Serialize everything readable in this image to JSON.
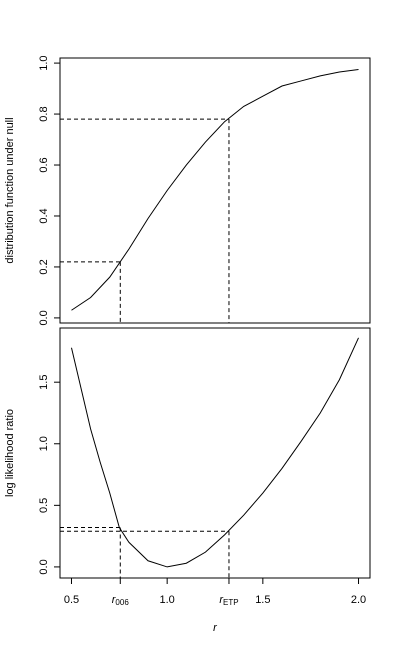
{
  "chart_data": [
    {
      "type": "line",
      "y_label": "distribution function under null",
      "xlim": [
        0.44,
        2.06
      ],
      "ylim": [
        -0.02,
        1.02
      ],
      "yticks": [
        {
          "value": 0,
          "label": "0.0"
        },
        0.2,
        0.4,
        0.6,
        0.8,
        {
          "value": 1,
          "label": "1.0"
        }
      ],
      "color": "#000000",
      "x": [
        0.5,
        0.6,
        0.7,
        0.8,
        0.9,
        1.0,
        1.1,
        1.2,
        1.3,
        1.4,
        1.5,
        1.6,
        1.7,
        1.8,
        1.9,
        2.0
      ],
      "values": [
        0.03,
        0.08,
        0.16,
        0.27,
        0.39,
        0.5,
        0.6,
        0.69,
        0.77,
        0.83,
        0.87,
        0.91,
        0.93,
        0.95,
        0.965,
        0.975
      ],
      "guides": [
        {
          "x": 0.755,
          "y": 0.22
        },
        {
          "x": 1.323,
          "y": 0.78
        }
      ]
    },
    {
      "type": "line",
      "x_label": "r",
      "y_label": "log likelihood ratio",
      "xlim": [
        0.44,
        2.06
      ],
      "ylim": [
        -0.09,
        1.94
      ],
      "xticks": [
        0.5,
        {
          "value": 0.755,
          "label": "r",
          "subscript": "006"
        },
        {
          "value": 1,
          "label": "1.0"
        },
        {
          "value": 1.323,
          "label": "r",
          "subscript": "ETP"
        },
        1.5,
        {
          "value": 2,
          "label": "2.0"
        }
      ],
      "yticks": [
        {
          "value": 0,
          "label": "0.0"
        },
        0.5,
        {
          "value": 1,
          "label": "1.0"
        },
        1.5
      ],
      "color": "#000000",
      "x": [
        0.5,
        0.55,
        0.6,
        0.65,
        0.7,
        0.75,
        0.8,
        0.9,
        1.0,
        1.1,
        1.2,
        1.3,
        1.4,
        1.5,
        1.6,
        1.7,
        1.8,
        1.9,
        2.0
      ],
      "values": [
        1.78,
        1.45,
        1.12,
        0.85,
        0.6,
        0.32,
        0.2,
        0.05,
        0.0,
        0.03,
        0.12,
        0.26,
        0.42,
        0.6,
        0.8,
        1.02,
        1.25,
        1.52,
        1.86
      ],
      "guides": [
        {
          "x": 0.755,
          "y": 0.32
        },
        {
          "x": 1.323,
          "y": 0.29
        }
      ]
    }
  ]
}
